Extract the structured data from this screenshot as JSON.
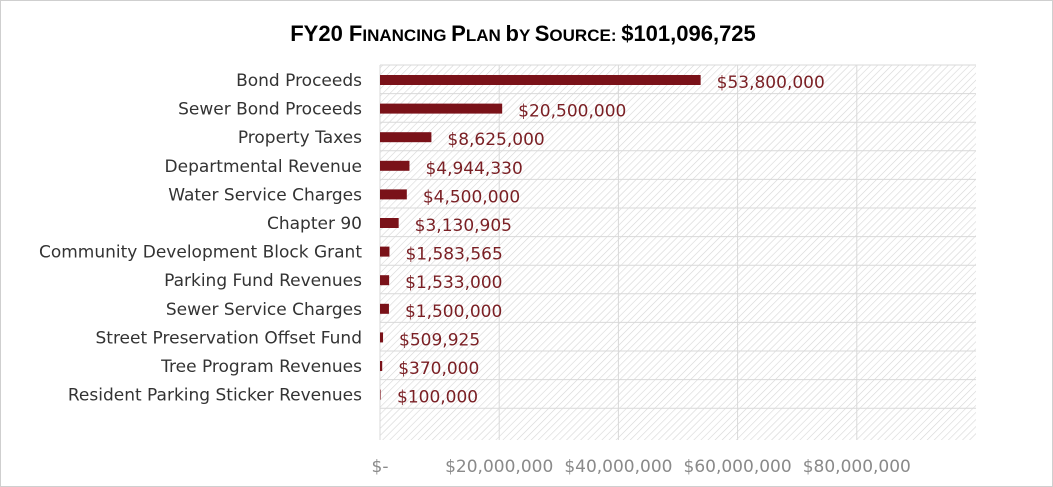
{
  "chart_data": {
    "type": "bar",
    "orientation": "horizontal",
    "title": "FY20 Financing Plan by Source: $101,096,725",
    "title_parts": {
      "prefix": "FY20 ",
      "smallcaps_words": [
        "Financing",
        "Plan",
        "by",
        "Source:"
      ],
      "amount": "$101,096,725"
    },
    "categories": [
      "Bond Proceeds",
      "Sewer Bond Proceeds",
      "Property Taxes",
      "Departmental Revenue",
      "Water Service Charges",
      "Chapter 90",
      "Community Development Block Grant",
      "Parking Fund Revenues",
      "Sewer Service Charges",
      "Street Preservation Offset Fund",
      "Tree Program Revenues",
      "Resident Parking Sticker Revenues"
    ],
    "values": [
      53800000,
      20500000,
      8625000,
      4944330,
      4500000,
      3130905,
      1583565,
      1533000,
      1500000,
      509925,
      370000,
      100000
    ],
    "data_labels": [
      "$53,800,000",
      "$20,500,000",
      "$8,625,000",
      "$4,944,330",
      "$4,500,000",
      "$3,130,905",
      "$1,583,565",
      "$1,533,000",
      "$1,500,000",
      "$509,925",
      "$370,000",
      "$100,000"
    ],
    "xlim": [
      0,
      100000000
    ],
    "x_ticks": [
      0,
      20000000,
      40000000,
      60000000,
      80000000
    ],
    "x_tick_labels": [
      "$-",
      "$20,000,000",
      "$40,000,000",
      "$60,000,000",
      "$80,000,000"
    ],
    "xlabel": "",
    "ylabel": "",
    "grid": true,
    "legend": "none",
    "colors": {
      "bar": "#7a1219",
      "data_label": "#7a1f24",
      "grid": "#d9d9d9",
      "hatch": "#d4d4d4"
    }
  }
}
